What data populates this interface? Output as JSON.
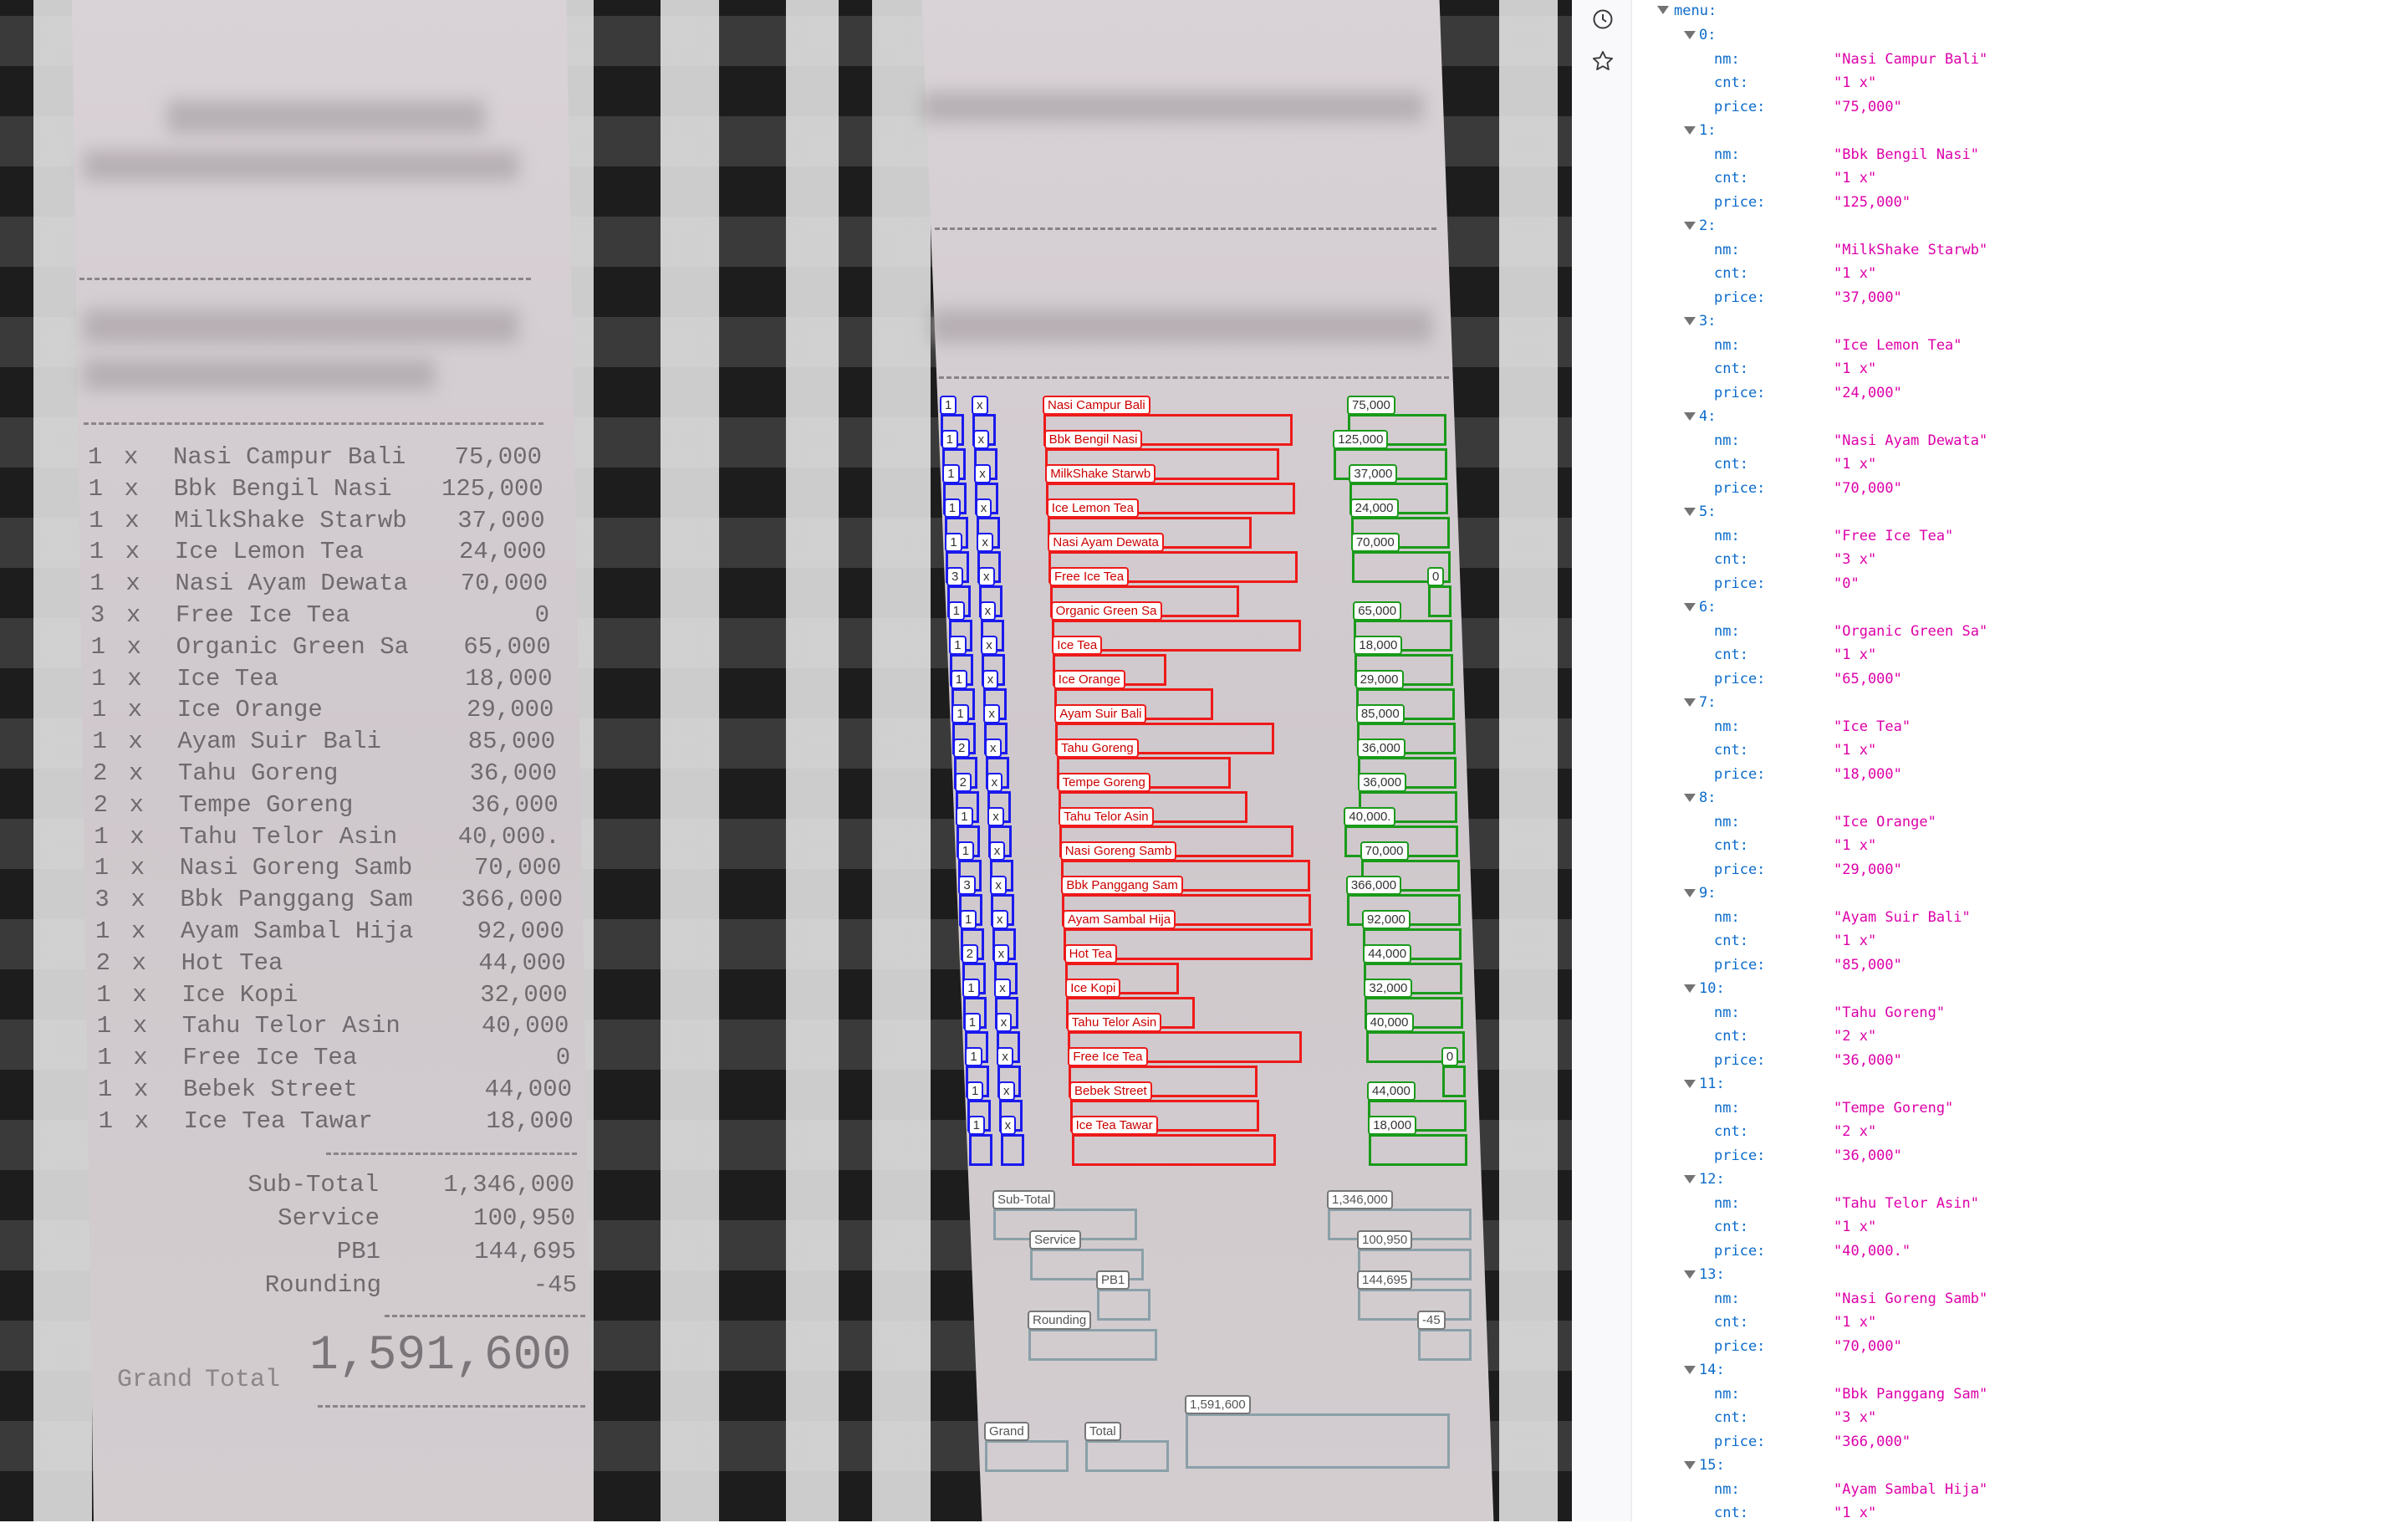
{
  "receipt": {
    "items": [
      {
        "cnt": "1",
        "nm": "Nasi Campur Bali",
        "price": "75,000"
      },
      {
        "cnt": "1",
        "nm": "Bbk Bengil Nasi",
        "price": "125,000"
      },
      {
        "cnt": "1",
        "nm": "MilkShake Starwb",
        "price": "37,000"
      },
      {
        "cnt": "1",
        "nm": "Ice Lemon Tea",
        "price": "24,000"
      },
      {
        "cnt": "1",
        "nm": "Nasi Ayam Dewata",
        "price": "70,000"
      },
      {
        "cnt": "3",
        "nm": "Free Ice Tea",
        "price": "0"
      },
      {
        "cnt": "1",
        "nm": "Organic Green Sa",
        "price": "65,000"
      },
      {
        "cnt": "1",
        "nm": "Ice Tea",
        "price": "18,000"
      },
      {
        "cnt": "1",
        "nm": "Ice Orange",
        "price": "29,000"
      },
      {
        "cnt": "1",
        "nm": "Ayam Suir Bali",
        "price": "85,000"
      },
      {
        "cnt": "2",
        "nm": "Tahu Goreng",
        "price": "36,000"
      },
      {
        "cnt": "2",
        "nm": "Tempe Goreng",
        "price": "36,000"
      },
      {
        "cnt": "1",
        "nm": "Tahu Telor Asin",
        "price": "40,000."
      },
      {
        "cnt": "1",
        "nm": "Nasi Goreng Samb",
        "price": "70,000"
      },
      {
        "cnt": "3",
        "nm": "Bbk Panggang Sam",
        "price": "366,000"
      },
      {
        "cnt": "1",
        "nm": "Ayam Sambal Hija",
        "price": "92,000"
      },
      {
        "cnt": "2",
        "nm": "Hot Tea",
        "price": "44,000"
      },
      {
        "cnt": "1",
        "nm": "Ice Kopi",
        "price": "32,000"
      },
      {
        "cnt": "1",
        "nm": "Tahu Telor Asin",
        "price": "40,000"
      },
      {
        "cnt": "1",
        "nm": "Free Ice Tea",
        "price": "0"
      },
      {
        "cnt": "1",
        "nm": "Bebek Street",
        "price": "44,000"
      },
      {
        "cnt": "1",
        "nm": "Ice Tea Tawar",
        "price": "18,000"
      }
    ],
    "x_mark": "x",
    "totals": [
      {
        "label": "Sub-Total",
        "value": "1,346,000"
      },
      {
        "label": "Service",
        "value": "100,950"
      },
      {
        "label": "PB1",
        "value": "144,695"
      },
      {
        "label": "Rounding",
        "value": "-45"
      }
    ],
    "grand": {
      "label1": "Grand",
      "label2": "Total",
      "value": "1,591,600"
    }
  },
  "annotation_colors": {
    "count": "#1a1aee",
    "menu_name": "#ee1a1a",
    "price": "#1a9a1a",
    "total": "#8aa0a8"
  },
  "sidebar_icons": [
    "clock-icon",
    "star-icon"
  ],
  "tree": {
    "root": "menu:",
    "keys": {
      "nm": "nm:",
      "cnt": "cnt:",
      "price": "price:"
    },
    "items": [
      {
        "nm": "\"Nasi Campur Bali\"",
        "cnt": "\"1 x\"",
        "price": "\"75,000\""
      },
      {
        "nm": "\"Bbk Bengil Nasi\"",
        "cnt": "\"1 x\"",
        "price": "\"125,000\""
      },
      {
        "nm": "\"MilkShake Starwb\"",
        "cnt": "\"1 x\"",
        "price": "\"37,000\""
      },
      {
        "nm": "\"Ice Lemon Tea\"",
        "cnt": "\"1 x\"",
        "price": "\"24,000\""
      },
      {
        "nm": "\"Nasi Ayam Dewata\"",
        "cnt": "\"1 x\"",
        "price": "\"70,000\""
      },
      {
        "nm": "\"Free Ice Tea\"",
        "cnt": "\"3 x\"",
        "price": "\"0\""
      },
      {
        "nm": "\"Organic Green Sa\"",
        "cnt": "\"1 x\"",
        "price": "\"65,000\""
      },
      {
        "nm": "\"Ice Tea\"",
        "cnt": "\"1 x\"",
        "price": "\"18,000\""
      },
      {
        "nm": "\"Ice Orange\"",
        "cnt": "\"1 x\"",
        "price": "\"29,000\""
      },
      {
        "nm": "\"Ayam Suir Bali\"",
        "cnt": "\"1 x\"",
        "price": "\"85,000\""
      },
      {
        "nm": "\"Tahu Goreng\"",
        "cnt": "\"2 x\"",
        "price": "\"36,000\""
      },
      {
        "nm": "\"Tempe Goreng\"",
        "cnt": "\"2 x\"",
        "price": "\"36,000\""
      },
      {
        "nm": "\"Tahu Telor Asin\"",
        "cnt": "\"1 x\"",
        "price": "\"40,000.\""
      },
      {
        "nm": "\"Nasi Goreng Samb\"",
        "cnt": "\"1 x\"",
        "price": "\"70,000\""
      },
      {
        "nm": "\"Bbk Panggang Sam\"",
        "cnt": "\"3 x\"",
        "price": "\"366,000\""
      },
      {
        "nm": "\"Ayam Sambal Hija\"",
        "cnt": "\"1 x\""
      }
    ]
  }
}
